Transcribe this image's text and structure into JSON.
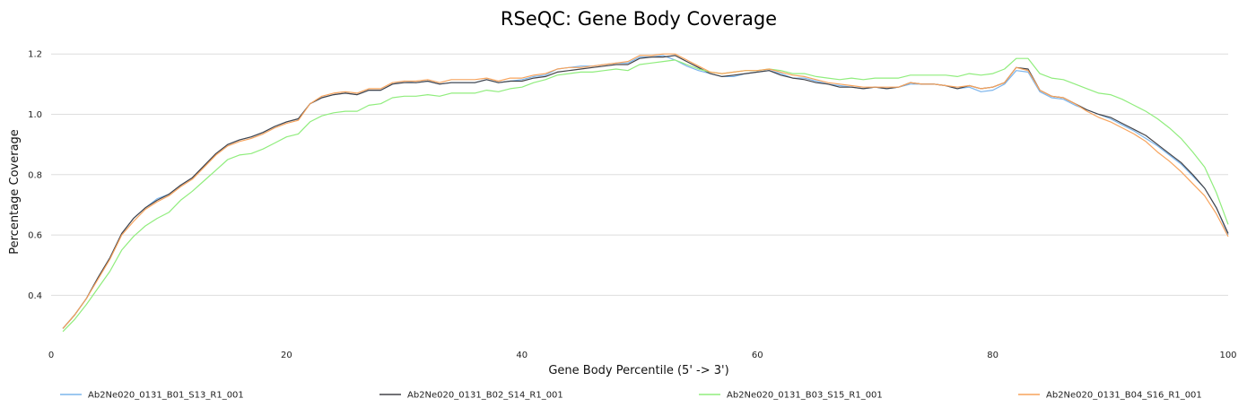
{
  "chart_data": {
    "type": "line",
    "title": "RSeQC: Gene Body Coverage",
    "xlabel": "Gene Body Percentile (5' -> 3')",
    "ylabel": "Percentage Coverage",
    "xlim": [
      0,
      100
    ],
    "ylim": [
      0.22,
      1.26
    ],
    "xticks": [
      0,
      20,
      40,
      60,
      80,
      100
    ],
    "yticks": [
      0.4,
      0.6,
      0.8,
      1.0,
      1.2
    ],
    "ytick_labels": [
      "0.4",
      "0.6",
      "0.8",
      "1.0",
      "1.2"
    ],
    "grid": true,
    "legend_position": "bottom",
    "x": [
      1,
      2,
      3,
      4,
      5,
      6,
      7,
      8,
      9,
      10,
      11,
      12,
      13,
      14,
      15,
      16,
      17,
      18,
      19,
      20,
      21,
      22,
      23,
      24,
      25,
      26,
      27,
      28,
      29,
      30,
      31,
      32,
      33,
      34,
      35,
      36,
      37,
      38,
      39,
      40,
      41,
      42,
      43,
      44,
      45,
      46,
      47,
      48,
      49,
      50,
      51,
      52,
      53,
      54,
      55,
      56,
      57,
      58,
      59,
      60,
      61,
      62,
      63,
      64,
      65,
      66,
      67,
      68,
      69,
      70,
      71,
      72,
      73,
      74,
      75,
      76,
      77,
      78,
      79,
      80,
      81,
      82,
      83,
      84,
      85,
      86,
      87,
      88,
      89,
      90,
      91,
      92,
      93,
      94,
      95,
      96,
      97,
      98,
      99,
      100
    ],
    "series": [
      {
        "name": "Ab2Ne020_0131_B01_S13_R1_001",
        "color": "#7cb5ec",
        "values": [
          0.29,
          0.335,
          0.39,
          0.46,
          0.525,
          0.605,
          0.655,
          0.69,
          0.72,
          0.735,
          0.765,
          0.79,
          0.83,
          0.87,
          0.9,
          0.915,
          0.925,
          0.94,
          0.96,
          0.975,
          0.985,
          1.035,
          1.055,
          1.065,
          1.07,
          1.065,
          1.08,
          1.08,
          1.1,
          1.11,
          1.105,
          1.11,
          1.1,
          1.105,
          1.105,
          1.105,
          1.115,
          1.105,
          1.11,
          1.115,
          1.125,
          1.13,
          1.15,
          1.155,
          1.16,
          1.16,
          1.165,
          1.17,
          1.17,
          1.19,
          1.19,
          1.195,
          1.18,
          1.16,
          1.145,
          1.135,
          1.125,
          1.125,
          1.135,
          1.14,
          1.145,
          1.135,
          1.12,
          1.12,
          1.11,
          1.1,
          1.095,
          1.09,
          1.085,
          1.09,
          1.085,
          1.09,
          1.1,
          1.1,
          1.1,
          1.095,
          1.085,
          1.09,
          1.075,
          1.08,
          1.1,
          1.145,
          1.14,
          1.075,
          1.055,
          1.05,
          1.03,
          1.015,
          1.0,
          0.985,
          0.965,
          0.945,
          0.92,
          0.895,
          0.865,
          0.835,
          0.795,
          0.755,
          0.69,
          0.6
        ]
      },
      {
        "name": "Ab2Ne020_0131_B02_S14_R1_001",
        "color": "#434348",
        "values": [
          0.29,
          0.335,
          0.39,
          0.46,
          0.525,
          0.605,
          0.655,
          0.69,
          0.715,
          0.735,
          0.765,
          0.79,
          0.83,
          0.87,
          0.9,
          0.915,
          0.925,
          0.94,
          0.96,
          0.975,
          0.985,
          1.035,
          1.055,
          1.065,
          1.07,
          1.065,
          1.08,
          1.08,
          1.1,
          1.105,
          1.105,
          1.11,
          1.1,
          1.105,
          1.105,
          1.105,
          1.115,
          1.105,
          1.11,
          1.11,
          1.12,
          1.125,
          1.14,
          1.145,
          1.15,
          1.155,
          1.16,
          1.165,
          1.165,
          1.185,
          1.19,
          1.19,
          1.195,
          1.175,
          1.155,
          1.135,
          1.125,
          1.13,
          1.135,
          1.14,
          1.145,
          1.13,
          1.12,
          1.115,
          1.105,
          1.1,
          1.09,
          1.09,
          1.085,
          1.09,
          1.085,
          1.09,
          1.105,
          1.1,
          1.1,
          1.095,
          1.085,
          1.095,
          1.085,
          1.09,
          1.105,
          1.155,
          1.15,
          1.08,
          1.06,
          1.055,
          1.035,
          1.015,
          1.0,
          0.99,
          0.97,
          0.95,
          0.93,
          0.9,
          0.87,
          0.84,
          0.8,
          0.755,
          0.69,
          0.605
        ]
      },
      {
        "name": "Ab2Ne020_0131_B03_S15_R1_001",
        "color": "#90ed7d",
        "values": [
          0.28,
          0.32,
          0.37,
          0.425,
          0.48,
          0.55,
          0.595,
          0.63,
          0.655,
          0.675,
          0.715,
          0.745,
          0.78,
          0.815,
          0.85,
          0.865,
          0.87,
          0.885,
          0.905,
          0.925,
          0.935,
          0.975,
          0.995,
          1.005,
          1.01,
          1.01,
          1.03,
          1.035,
          1.055,
          1.06,
          1.06,
          1.065,
          1.06,
          1.07,
          1.07,
          1.07,
          1.08,
          1.075,
          1.085,
          1.09,
          1.105,
          1.115,
          1.13,
          1.135,
          1.14,
          1.14,
          1.145,
          1.15,
          1.145,
          1.165,
          1.17,
          1.175,
          1.18,
          1.165,
          1.15,
          1.14,
          1.135,
          1.14,
          1.145,
          1.145,
          1.15,
          1.145,
          1.135,
          1.135,
          1.125,
          1.12,
          1.115,
          1.12,
          1.115,
          1.12,
          1.12,
          1.12,
          1.13,
          1.13,
          1.13,
          1.13,
          1.125,
          1.135,
          1.13,
          1.135,
          1.15,
          1.185,
          1.185,
          1.135,
          1.12,
          1.115,
          1.1,
          1.085,
          1.07,
          1.065,
          1.05,
          1.03,
          1.01,
          0.985,
          0.955,
          0.92,
          0.875,
          0.825,
          0.74,
          0.635
        ]
      },
      {
        "name": "Ab2Ne020_0131_B04_S16_R1_001",
        "color": "#f7a35c",
        "values": [
          0.29,
          0.335,
          0.39,
          0.455,
          0.52,
          0.6,
          0.645,
          0.685,
          0.71,
          0.73,
          0.76,
          0.785,
          0.825,
          0.865,
          0.895,
          0.91,
          0.92,
          0.935,
          0.955,
          0.97,
          0.98,
          1.035,
          1.06,
          1.07,
          1.075,
          1.07,
          1.085,
          1.085,
          1.105,
          1.11,
          1.11,
          1.115,
          1.105,
          1.115,
          1.115,
          1.115,
          1.12,
          1.11,
          1.12,
          1.12,
          1.13,
          1.135,
          1.15,
          1.155,
          1.155,
          1.16,
          1.165,
          1.17,
          1.175,
          1.195,
          1.195,
          1.2,
          1.2,
          1.18,
          1.16,
          1.14,
          1.135,
          1.14,
          1.145,
          1.145,
          1.15,
          1.14,
          1.13,
          1.125,
          1.115,
          1.105,
          1.1,
          1.095,
          1.09,
          1.09,
          1.09,
          1.09,
          1.105,
          1.1,
          1.1,
          1.095,
          1.09,
          1.095,
          1.085,
          1.09,
          1.105,
          1.155,
          1.145,
          1.08,
          1.06,
          1.055,
          1.035,
          1.01,
          0.99,
          0.975,
          0.955,
          0.935,
          0.91,
          0.875,
          0.845,
          0.81,
          0.77,
          0.73,
          0.67,
          0.595
        ]
      }
    ]
  }
}
